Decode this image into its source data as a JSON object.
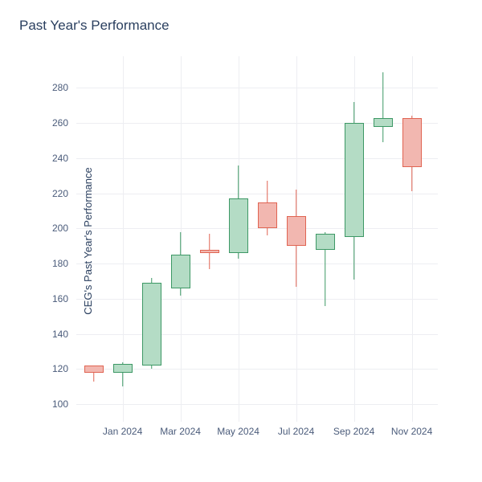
{
  "title": "Past Year's Performance",
  "yaxis_label": "CEG's Past Year's Performance",
  "chart": {
    "type": "candlestick",
    "background_color": "#ffffff",
    "grid_color": "#edeef2",
    "title_color": "#2a3f5f",
    "tick_color": "#4a5b7a",
    "title_fontsize": 17,
    "tick_fontsize": 12,
    "yaxis_fontsize": 13,
    "ymin": 90,
    "ymax": 298,
    "yticks": [
      100,
      120,
      140,
      160,
      180,
      200,
      220,
      240,
      260,
      280
    ],
    "xtick_labels": [
      "Jan 2024",
      "Mar 2024",
      "May 2024",
      "Jul 2024",
      "Sep 2024",
      "Nov 2024"
    ],
    "xtick_positions": [
      1,
      3,
      5,
      7,
      9,
      11
    ],
    "colors": {
      "up_fill": "#b4dcc5",
      "up_border": "#3d9865",
      "down_fill": "#f2b7b0",
      "down_border": "#e06452"
    },
    "candle_width": 24,
    "wick_width": 1.5,
    "candles": [
      {
        "x": 0,
        "open": 122,
        "close": 118,
        "high": 122,
        "low": 113,
        "dir": "down"
      },
      {
        "x": 1,
        "open": 118,
        "close": 123,
        "high": 124,
        "low": 110,
        "dir": "up"
      },
      {
        "x": 2,
        "open": 122,
        "close": 169,
        "high": 172,
        "low": 120,
        "dir": "up"
      },
      {
        "x": 3,
        "open": 166,
        "close": 185,
        "high": 198,
        "low": 162,
        "dir": "up"
      },
      {
        "x": 4,
        "open": 188,
        "close": 186,
        "high": 197,
        "low": 177,
        "dir": "down"
      },
      {
        "x": 5,
        "open": 186,
        "close": 217,
        "high": 236,
        "low": 183,
        "dir": "up"
      },
      {
        "x": 6,
        "open": 215,
        "close": 200,
        "high": 227,
        "low": 196,
        "dir": "down"
      },
      {
        "x": 7,
        "open": 207,
        "close": 190,
        "high": 222,
        "low": 167,
        "dir": "down"
      },
      {
        "x": 8,
        "open": 188,
        "close": 197,
        "high": 198,
        "low": 156,
        "dir": "up"
      },
      {
        "x": 9,
        "open": 195,
        "close": 260,
        "high": 272,
        "low": 171,
        "dir": "up"
      },
      {
        "x": 10,
        "open": 258,
        "close": 263,
        "high": 289,
        "low": 249,
        "dir": "up"
      },
      {
        "x": 11,
        "open": 263,
        "close": 235,
        "high": 264,
        "low": 221,
        "dir": "down"
      }
    ]
  }
}
